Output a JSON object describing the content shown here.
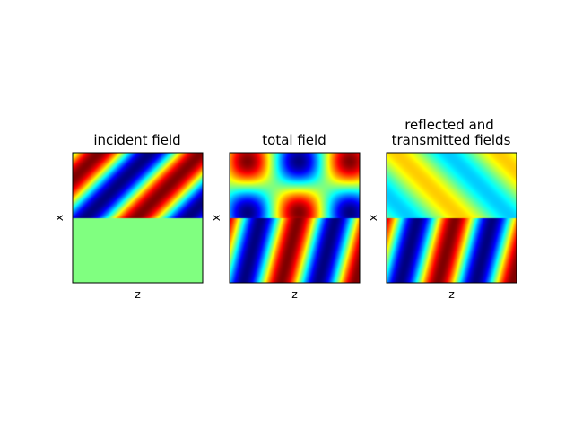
{
  "chart_data": [
    {
      "type": "heatmap",
      "title": "incident field",
      "xlabel": "z",
      "ylabel": "x",
      "ticks": "none",
      "colormap": "jet",
      "upper_region": "oblique plane wave (stripes)",
      "lower_region": "uniform (zero field)",
      "interface": "horizontal, at mid-height"
    },
    {
      "type": "heatmap",
      "title": "total field",
      "xlabel": "z",
      "ylabel": "x",
      "ticks": "none",
      "colormap": "jet",
      "upper_region": "interference pattern (incident + reflected)",
      "lower_region": "transmitted plane wave (stripes)",
      "interface": "horizontal, at mid-height"
    },
    {
      "type": "heatmap",
      "title": "reflected and\ntransmitted fields",
      "title_lines": [
        "reflected and",
        "transmitted fields"
      ],
      "xlabel": "z",
      "ylabel": "x",
      "ticks": "none",
      "colormap": "jet",
      "upper_region": "reflected wave (low amplitude)",
      "lower_region": "transmitted plane wave (stripes)",
      "interface": "horizontal, at mid-height"
    }
  ]
}
